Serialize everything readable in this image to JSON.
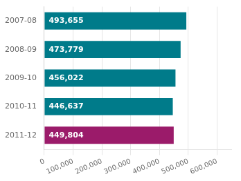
{
  "chart_data": {
    "type": "bar",
    "orientation": "horizontal",
    "categories": [
      "2007-08",
      "2008-09",
      "2009-10",
      "2010-11",
      "2011-12"
    ],
    "values": [
      493655,
      473779,
      456022,
      446637,
      449804
    ],
    "value_labels": [
      "493,655",
      "473,779",
      "456,022",
      "446,637",
      "449,804"
    ],
    "data_labels": true,
    "colors": [
      "#007b8a",
      "#007b8a",
      "#007b8a",
      "#007b8a",
      "#9b1b6a"
    ],
    "xlim": [
      0,
      650000
    ],
    "xticks": [
      0,
      {
        "value": 100000,
        "label": "100,000"
      },
      {
        "value": 200000,
        "label": "200,000"
      },
      {
        "value": 300000,
        "label": "300,000"
      },
      {
        "value": 400000,
        "label": "400,000"
      },
      {
        "value": 500000,
        "label": "500,000"
      },
      {
        "value": 600000,
        "label": "600,000"
      }
    ],
    "grid": true
  }
}
